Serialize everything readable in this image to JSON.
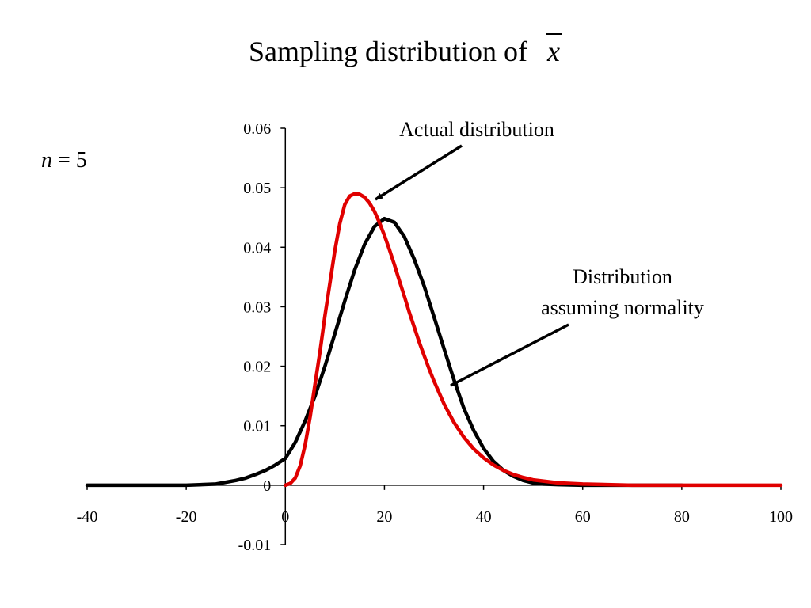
{
  "title": {
    "text": "Sampling distribution of",
    "symbol": "x"
  },
  "sample_size": {
    "variable": "n",
    "operator": "=",
    "value": "5"
  },
  "annotations": {
    "actual": "Actual distribution",
    "normal_line1": "Distribution",
    "normal_line2": "assuming normality"
  },
  "colors": {
    "actual": "#e00000",
    "normal": "#000000",
    "axis": "#000000"
  },
  "chart_data": {
    "type": "line",
    "title": "Sampling distribution of x̄",
    "xlim": [
      -40,
      100
    ],
    "ylim": [
      -0.01,
      0.06
    ],
    "x_ticks": [
      -40,
      -20,
      0,
      20,
      40,
      60,
      80,
      100
    ],
    "y_ticks": [
      -0.01,
      0,
      0.01,
      0.02,
      0.03,
      0.04,
      0.05,
      0.06
    ],
    "x_tick_labels": [
      "-40",
      "-20",
      "0",
      "20",
      "40",
      "60",
      "80",
      "100"
    ],
    "y_tick_labels": [
      "-0.01",
      "0",
      "0.01",
      "0.02",
      "0.03",
      "0.04",
      "0.05",
      "0.06"
    ],
    "grid": false,
    "series": [
      {
        "key": "actual",
        "x": [
          0,
          1,
          2,
          3,
          4,
          5,
          6,
          7,
          8,
          9,
          10,
          11,
          12,
          13,
          14,
          15,
          16,
          17,
          18,
          19,
          20,
          21,
          22,
          23,
          24,
          25,
          26,
          27,
          28,
          29,
          30,
          32,
          34,
          36,
          38,
          40,
          42,
          44,
          46,
          48,
          50,
          55,
          60,
          65,
          70,
          80,
          90,
          100
        ],
        "y": [
          0,
          0.0003,
          0.0012,
          0.0033,
          0.0068,
          0.0115,
          0.017,
          0.0225,
          0.0285,
          0.034,
          0.0395,
          0.044,
          0.0472,
          0.0486,
          0.049,
          0.0489,
          0.0484,
          0.0474,
          0.046,
          0.0441,
          0.042,
          0.0396,
          0.0371,
          0.0344,
          0.0318,
          0.0291,
          0.0266,
          0.0241,
          0.0218,
          0.0196,
          0.0175,
          0.0137,
          0.0106,
          0.0081,
          0.0061,
          0.0046,
          0.0034,
          0.0025,
          0.0018,
          0.0013,
          0.0009,
          0.0004,
          0.0002,
          0.0001,
          0,
          0,
          0,
          0
        ]
      },
      {
        "key": "normal",
        "x": [
          -40,
          -30,
          -20,
          -14,
          -10,
          -8,
          -6,
          -4,
          -2,
          0,
          2,
          4,
          6,
          8,
          10,
          12,
          14,
          16,
          18,
          20,
          22,
          24,
          26,
          28,
          30,
          32,
          34,
          36,
          38,
          40,
          42,
          44,
          46,
          48,
          50,
          52,
          55,
          60,
          65,
          70,
          80
        ],
        "y": [
          0,
          0,
          0,
          0.0002,
          0.0008,
          0.0012,
          0.0018,
          0.0025,
          0.0034,
          0.0045,
          0.0072,
          0.0108,
          0.015,
          0.02,
          0.0255,
          0.031,
          0.0362,
          0.0405,
          0.0435,
          0.0448,
          0.0442,
          0.0418,
          0.038,
          0.0335,
          0.0283,
          0.023,
          0.0178,
          0.013,
          0.0092,
          0.0062,
          0.004,
          0.0025,
          0.0015,
          0.0008,
          0.0004,
          0.0002,
          0.0001,
          0,
          0,
          0,
          0
        ]
      }
    ]
  }
}
